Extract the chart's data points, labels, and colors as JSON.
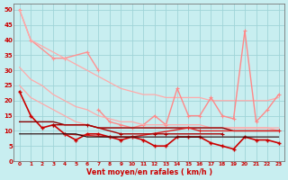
{
  "bg_color": "#c8eef0",
  "grid_color": "#a0d4d8",
  "xlabel": "Vent moyen/en rafales ( km/h )",
  "x": [
    0,
    1,
    2,
    3,
    4,
    5,
    6,
    7,
    8,
    9,
    10,
    11,
    12,
    13,
    14,
    15,
    16,
    17,
    18,
    19,
    20,
    21,
    22,
    23
  ],
  "series": [
    {
      "y": [
        50,
        40,
        null,
        34,
        34,
        null,
        36,
        30,
        null,
        null,
        null,
        null,
        null,
        null,
        null,
        null,
        null,
        null,
        null,
        null,
        null,
        null,
        null,
        null
      ],
      "color": "#ff9090",
      "lw": 1.0,
      "marker": "+",
      "ms": 3.0,
      "mew": 0.8
    },
    {
      "y": [
        50,
        40,
        38,
        36,
        34,
        32,
        30,
        28,
        26,
        24,
        23,
        22,
        22,
        21,
        21,
        21,
        21,
        20,
        20,
        20,
        20,
        20,
        20,
        21
      ],
      "color": "#ffaaaa",
      "lw": 0.9,
      "marker": null,
      "ms": 0,
      "mew": 0
    },
    {
      "y": [
        25,
        21,
        19,
        17,
        15,
        13,
        12,
        11,
        11,
        11,
        11,
        11,
        11,
        11,
        11,
        11,
        11,
        11,
        11,
        11,
        11,
        11,
        11,
        10
      ],
      "color": "#ffaaaa",
      "lw": 0.9,
      "marker": null,
      "ms": 0,
      "mew": 0
    },
    {
      "y": [
        null,
        null,
        null,
        null,
        null,
        null,
        null,
        17,
        13,
        12,
        11,
        12,
        15,
        12,
        24,
        15,
        15,
        21,
        15,
        14,
        43,
        13,
        17,
        22
      ],
      "color": "#ff8888",
      "lw": 1.0,
      "marker": "+",
      "ms": 3.5,
      "mew": 0.8
    },
    {
      "y": [
        31,
        27,
        25,
        22,
        20,
        18,
        17,
        15,
        14,
        13,
        13,
        12,
        12,
        12,
        12,
        12,
        12,
        11,
        11,
        11,
        11,
        11,
        11,
        11
      ],
      "color": "#ffaaaa",
      "lw": 0.9,
      "marker": null,
      "ms": 0,
      "mew": 0
    },
    {
      "y": [
        23,
        15,
        11,
        12,
        9,
        7,
        9,
        9,
        8,
        7,
        8,
        7,
        5,
        5,
        8,
        8,
        8,
        6,
        5,
        4,
        8,
        7,
        7,
        6
      ],
      "color": "#cc0000",
      "lw": 1.2,
      "marker": "+",
      "ms": 3.5,
      "mew": 1.0
    },
    {
      "y": [
        null,
        null,
        null,
        null,
        null,
        null,
        null,
        null,
        null,
        null,
        null,
        null,
        null,
        null,
        null,
        null,
        null,
        null,
        null,
        null,
        null,
        null,
        null,
        null
      ],
      "color": "#990000",
      "lw": 1.0,
      "marker": null,
      "ms": 0,
      "mew": 0
    },
    {
      "y": [
        13,
        13,
        13,
        13,
        12,
        12,
        12,
        11,
        11,
        11,
        11,
        11,
        11,
        11,
        11,
        11,
        11,
        11,
        11,
        10,
        10,
        10,
        10,
        10
      ],
      "color": "#880000",
      "lw": 1.0,
      "marker": null,
      "ms": 0,
      "mew": 0
    },
    {
      "y": [
        null,
        null,
        null,
        null,
        9,
        null,
        null,
        null,
        8,
        null,
        8,
        null,
        null,
        null,
        null,
        11,
        10,
        null,
        null,
        null,
        null,
        null,
        null,
        10
      ],
      "color": "#dd2222",
      "lw": 1.0,
      "marker": "+",
      "ms": 3.0,
      "mew": 0.8
    },
    {
      "y": [
        null,
        null,
        null,
        12,
        null,
        null,
        12,
        null,
        null,
        9,
        null,
        null,
        9,
        9,
        null,
        null,
        null,
        null,
        9,
        null,
        null,
        null,
        null,
        null
      ],
      "color": "#aa0000",
      "lw": 1.0,
      "marker": "+",
      "ms": 3.0,
      "mew": 0.8
    },
    {
      "y": [
        9,
        9,
        9,
        9,
        9,
        9,
        8,
        8,
        8,
        8,
        8,
        8,
        8,
        8,
        8,
        8,
        8,
        8,
        8,
        8,
        8,
        8,
        8,
        8
      ],
      "color": "#220000",
      "lw": 0.8,
      "marker": null,
      "ms": 0,
      "mew": 0
    }
  ],
  "yticks": [
    0,
    5,
    10,
    15,
    20,
    25,
    30,
    35,
    40,
    45,
    50
  ],
  "xticks": [
    0,
    1,
    2,
    3,
    4,
    5,
    6,
    7,
    8,
    9,
    10,
    11,
    12,
    13,
    14,
    15,
    16,
    17,
    18,
    19,
    20,
    21,
    22,
    23
  ],
  "ylim": [
    0,
    52
  ],
  "xlim": [
    -0.5,
    23.5
  ]
}
